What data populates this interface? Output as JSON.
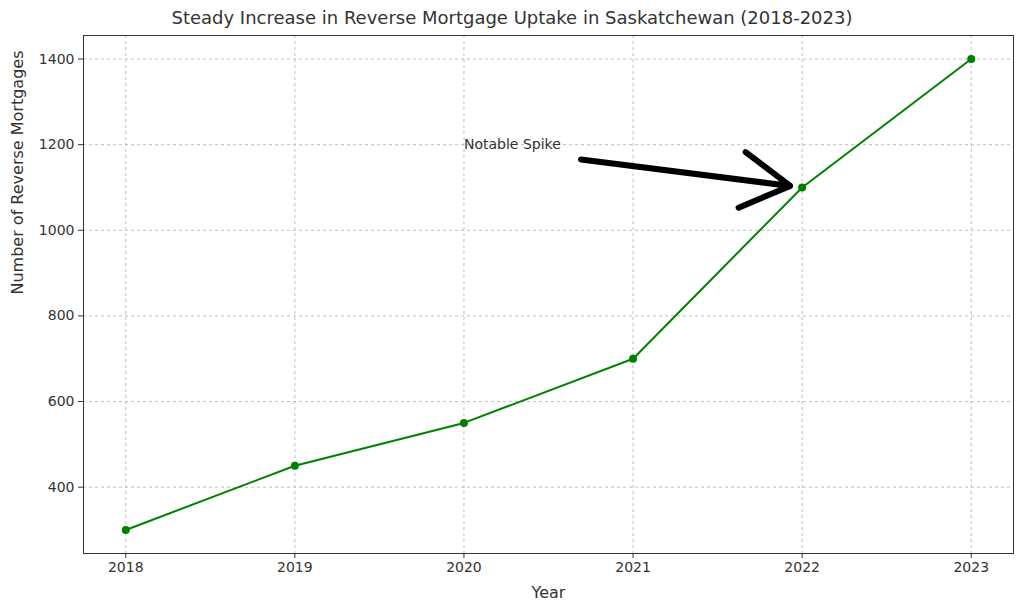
{
  "chart_data": {
    "type": "line",
    "title": "Steady Increase in Reverse Mortgage Uptake in Saskatchewan (2018-2023)",
    "x_label": "Year",
    "y_label": "Number of Reverse Mortgages",
    "x": [
      2018,
      2019,
      2020,
      2021,
      2022,
      2023
    ],
    "values": [
      300,
      450,
      550,
      700,
      1100,
      1400
    ],
    "color": "green",
    "marker": "o",
    "line_style": "solid",
    "xlim": [
      2017.75,
      2023.25
    ],
    "xticks": [
      2018,
      2019,
      2020,
      2021,
      2022,
      2023
    ],
    "ylim": [
      245,
      1455
    ],
    "yticks": [
      400,
      600,
      800,
      1000,
      1200,
      1400
    ],
    "grid": true,
    "annotations": [
      {
        "text": "Notable Spike",
        "x": 2020,
        "y": 1200,
        "arrow_x": 2022,
        "arrow_y": 1100
      }
    ]
  }
}
